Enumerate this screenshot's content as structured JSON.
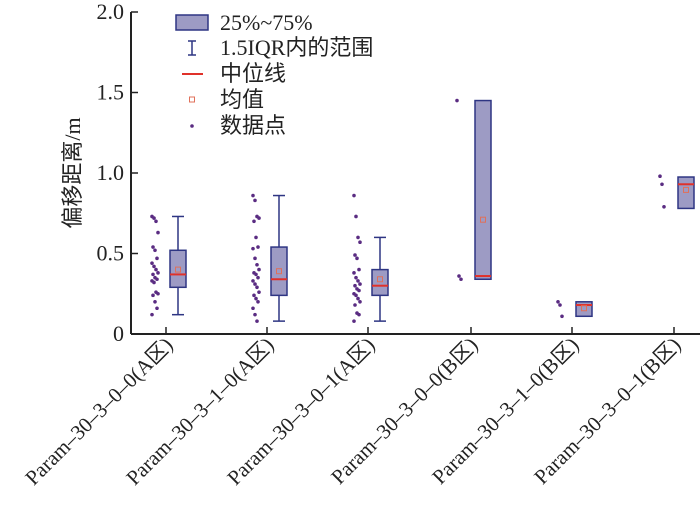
{
  "chart_data": {
    "type": "box",
    "ylabel": "偏移距离/m",
    "xlabel": "",
    "ylim": [
      0,
      2.0
    ],
    "yticks": [
      "0",
      "0.5",
      "1.0",
      "1.5",
      "2.0"
    ],
    "ytick_values": [
      0,
      0.5,
      1.0,
      1.5,
      2.0
    ],
    "categories": [
      "Param–30–3–0–0(A区)",
      "Param–30–3–1–0(A区)",
      "Param–30–3–0–1(A区)",
      "Param–30–3–0–0(B区)",
      "Param–30–3–1–0(B区)",
      "Param–30–3–0–1(B区)"
    ],
    "legend": {
      "placement": "top-left",
      "items": [
        "25%~75%",
        "1.5IQR内的范围",
        "中位线",
        "均值",
        "数据点"
      ]
    },
    "boxes": [
      {
        "q1": 0.29,
        "q3": 0.52,
        "median": 0.37,
        "mean": 0.4,
        "whisker_low": 0.12,
        "whisker_high": 0.73,
        "points": [
          0.73,
          0.72,
          0.7,
          0.63,
          0.54,
          0.52,
          0.47,
          0.44,
          0.42,
          0.4,
          0.38,
          0.37,
          0.35,
          0.34,
          0.33,
          0.32,
          0.26,
          0.25,
          0.24,
          0.2,
          0.16,
          0.12
        ]
      },
      {
        "q1": 0.24,
        "q3": 0.54,
        "median": 0.34,
        "mean": 0.39,
        "whisker_low": 0.08,
        "whisker_high": 0.86,
        "points": [
          0.86,
          0.83,
          0.73,
          0.72,
          0.7,
          0.6,
          0.54,
          0.53,
          0.47,
          0.43,
          0.4,
          0.38,
          0.37,
          0.35,
          0.33,
          0.31,
          0.29,
          0.26,
          0.24,
          0.22,
          0.2,
          0.16,
          0.12,
          0.08
        ]
      },
      {
        "q1": 0.24,
        "q3": 0.4,
        "median": 0.3,
        "mean": 0.34,
        "whisker_low": 0.08,
        "whisker_high": 0.6,
        "points": [
          0.86,
          0.73,
          0.6,
          0.57,
          0.49,
          0.47,
          0.4,
          0.38,
          0.35,
          0.33,
          0.31,
          0.3,
          0.28,
          0.27,
          0.25,
          0.24,
          0.22,
          0.2,
          0.18,
          0.13,
          0.12,
          0.08
        ]
      },
      {
        "q1": 0.34,
        "q3": 1.45,
        "median": 0.36,
        "mean": 0.71,
        "whisker_low": null,
        "whisker_high": null,
        "points": [
          1.45,
          0.36,
          0.34
        ]
      },
      {
        "q1": 0.11,
        "q3": 0.2,
        "median": 0.18,
        "mean": 0.16,
        "whisker_low": null,
        "whisker_high": null,
        "points": [
          0.2,
          0.18,
          0.11
        ]
      },
      {
        "q1": 0.78,
        "q3": 0.975,
        "median": 0.93,
        "mean": 0.895,
        "whisker_low": null,
        "whisker_high": null,
        "points": [
          0.98,
          0.93,
          0.79
        ]
      }
    ],
    "colors": {
      "box_fill": "#9d9bc4",
      "box_stroke": "#2e3583",
      "median": "#e0312a",
      "mean": "#e0705a",
      "point": "#5a2c82",
      "axis": "#222222"
    }
  }
}
